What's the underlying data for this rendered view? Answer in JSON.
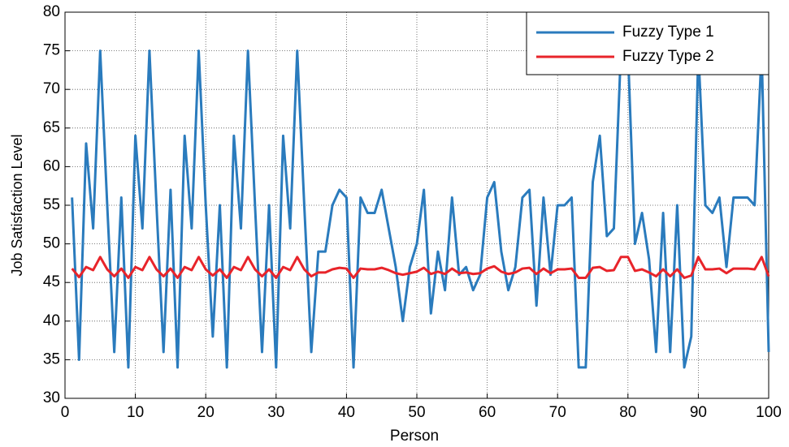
{
  "chart_data": {
    "type": "line",
    "x_label": "Person",
    "y_label": "Job Satisfaction Level",
    "x": [
      1,
      2,
      3,
      4,
      5,
      6,
      7,
      8,
      9,
      10,
      11,
      12,
      13,
      14,
      15,
      16,
      17,
      18,
      19,
      20,
      21,
      22,
      23,
      24,
      25,
      26,
      27,
      28,
      29,
      30,
      31,
      32,
      33,
      34,
      35,
      36,
      37,
      38,
      39,
      40,
      41,
      42,
      43,
      44,
      45,
      46,
      47,
      48,
      49,
      50,
      51,
      52,
      53,
      54,
      55,
      56,
      57,
      58,
      59,
      60,
      61,
      62,
      63,
      64,
      65,
      66,
      67,
      68,
      69,
      70,
      71,
      72,
      73,
      74,
      75,
      76,
      77,
      78,
      79,
      80,
      81,
      82,
      83,
      84,
      85,
      86,
      87,
      88,
      89,
      90,
      91,
      92,
      93,
      94,
      95,
      96,
      97,
      98,
      99,
      100
    ],
    "series": [
      {
        "name": "Fuzzy Type 1",
        "color": "#2a7bbd",
        "values": [
          56,
          35,
          63,
          52,
          75,
          55,
          36,
          56,
          34,
          64,
          52,
          75,
          55,
          36,
          57,
          34,
          64,
          52,
          75,
          55,
          38,
          55,
          34,
          64,
          52,
          75,
          55,
          36,
          55,
          34,
          64,
          52,
          75,
          55,
          36,
          49,
          49,
          55,
          57,
          56,
          34,
          56,
          54,
          54,
          57,
          52,
          47,
          40,
          47,
          50,
          57,
          41,
          49,
          44,
          56,
          46,
          47,
          44,
          46,
          56,
          58,
          49,
          44,
          47,
          56,
          57,
          42,
          56,
          46,
          55,
          55,
          56,
          34,
          34,
          58,
          64,
          51,
          52,
          75,
          75,
          50,
          54,
          48,
          36,
          54,
          36,
          55,
          34,
          38,
          75,
          55,
          54,
          56,
          47,
          56,
          56,
          56,
          55,
          75,
          36
        ]
      },
      {
        "name": "Fuzzy Type 2",
        "color": "#e8242a",
        "values": [
          46.8,
          45.7,
          47,
          46.6,
          48.3,
          46.7,
          45.8,
          46.8,
          45.6,
          47,
          46.6,
          48.3,
          46.7,
          45.8,
          46.8,
          45.6,
          47,
          46.6,
          48.3,
          46.7,
          45.9,
          46.7,
          45.6,
          47,
          46.6,
          48.3,
          46.7,
          45.8,
          46.7,
          45.6,
          47,
          46.6,
          48.3,
          46.7,
          45.8,
          46.3,
          46.3,
          46.7,
          46.9,
          46.8,
          45.6,
          46.8,
          46.7,
          46.7,
          46.9,
          46.6,
          46.2,
          46.0,
          46.2,
          46.4,
          46.9,
          46.1,
          46.4,
          46.1,
          46.8,
          46.2,
          46.3,
          46.1,
          46.2,
          46.8,
          47.1,
          46.4,
          46.1,
          46.3,
          46.8,
          46.9,
          46.1,
          46.8,
          46.2,
          46.7,
          46.7,
          46.8,
          45.6,
          45.6,
          46.9,
          47,
          46.5,
          46.6,
          48.3,
          48.3,
          46.5,
          46.7,
          46.3,
          45.8,
          46.7,
          45.8,
          46.7,
          45.6,
          45.9,
          48.3,
          46.7,
          46.7,
          46.8,
          46.2,
          46.8,
          46.8,
          46.8,
          46.7,
          48.3,
          45.8
        ]
      }
    ],
    "xlim": [
      0,
      100
    ],
    "xticks": [
      0,
      10,
      20,
      30,
      40,
      50,
      60,
      70,
      80,
      90,
      100
    ],
    "ylim": [
      30,
      80
    ],
    "yticks": [
      30,
      35,
      40,
      45,
      50,
      55,
      60,
      65,
      70,
      75,
      80
    ],
    "grid": true,
    "legend": "top-right"
  }
}
